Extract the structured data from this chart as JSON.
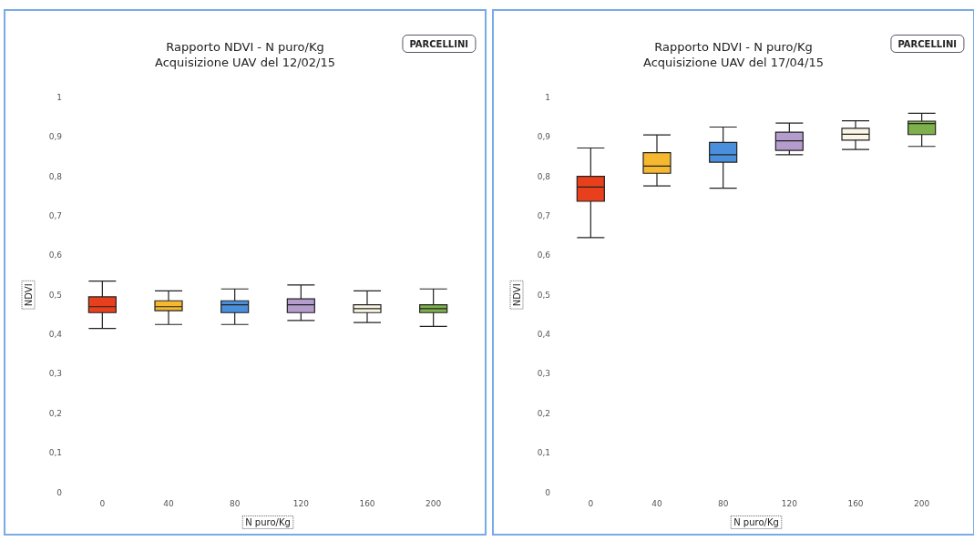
{
  "chart_data": [
    {
      "type": "box",
      "title": "Rapporto NDVI - N puro/Kg",
      "subtitle": "Acquisizione UAV del 12/02/15",
      "xlabel": "N puro/Kg",
      "ylabel": "NDVI",
      "annotations": [
        "PARCELLINI"
      ],
      "categories": [
        "0",
        "40",
        "80",
        "120",
        "160",
        "200"
      ],
      "colors": [
        "#e8401c",
        "#f5b82e",
        "#4a8fdc",
        "#b49ccc",
        "#fbf5e6",
        "#7eb04c"
      ],
      "boxes": [
        {
          "low": 0.415,
          "q1": 0.455,
          "median": 0.47,
          "q3": 0.495,
          "high": 0.535
        },
        {
          "low": 0.425,
          "q1": 0.46,
          "median": 0.47,
          "q3": 0.485,
          "high": 0.51
        },
        {
          "low": 0.425,
          "q1": 0.455,
          "median": 0.475,
          "q3": 0.485,
          "high": 0.515
        },
        {
          "low": 0.435,
          "q1": 0.455,
          "median": 0.475,
          "q3": 0.49,
          "high": 0.525
        },
        {
          "low": 0.43,
          "q1": 0.455,
          "median": 0.465,
          "q3": 0.475,
          "high": 0.51
        },
        {
          "low": 0.42,
          "q1": 0.455,
          "median": 0.465,
          "q3": 0.475,
          "high": 0.515
        }
      ],
      "ylim": [
        0,
        1
      ],
      "yticks": [
        {
          "value": 0,
          "label": "0"
        },
        {
          "value": 0.1,
          "label": "0,1"
        },
        {
          "value": 0.2,
          "label": "0,2"
        },
        {
          "value": 0.3,
          "label": "0,3"
        },
        {
          "value": 0.4,
          "label": "0,4"
        },
        {
          "value": 0.5,
          "label": "0,5"
        },
        {
          "value": 0.6,
          "label": "0,6"
        },
        {
          "value": 0.7,
          "label": "0,7"
        },
        {
          "value": 0.8,
          "label": "0,8"
        },
        {
          "value": 0.9,
          "label": "0,9"
        },
        {
          "value": 1,
          "label": "1"
        }
      ],
      "grid": false
    },
    {
      "type": "box",
      "title": "Rapporto NDVI - N puro/Kg",
      "subtitle": "Acquisizione UAV del 17/04/15",
      "xlabel": "N puro/Kg",
      "ylabel": "NDVI",
      "annotations": [
        "PARCELLINI"
      ],
      "categories": [
        "0",
        "40",
        "80",
        "120",
        "160",
        "200"
      ],
      "colors": [
        "#e8401c",
        "#f5b82e",
        "#4a8fdc",
        "#b49ccc",
        "#fbf5e6",
        "#7eb04c"
      ],
      "boxes": [
        {
          "low": 0.645,
          "q1": 0.737,
          "median": 0.773,
          "q3": 0.8,
          "high": 0.872
        },
        {
          "low": 0.776,
          "q1": 0.808,
          "median": 0.826,
          "q3": 0.86,
          "high": 0.905
        },
        {
          "low": 0.77,
          "q1": 0.836,
          "median": 0.855,
          "q3": 0.886,
          "high": 0.925
        },
        {
          "low": 0.855,
          "q1": 0.866,
          "median": 0.89,
          "q3": 0.912,
          "high": 0.935
        },
        {
          "low": 0.868,
          "q1": 0.892,
          "median": 0.907,
          "q3": 0.922,
          "high": 0.941
        },
        {
          "low": 0.876,
          "q1": 0.906,
          "median": 0.934,
          "q3": 0.94,
          "high": 0.96
        }
      ],
      "ylim": [
        0,
        1
      ],
      "yticks": [
        {
          "value": 0,
          "label": "0"
        },
        {
          "value": 0.1,
          "label": "0,1"
        },
        {
          "value": 0.2,
          "label": "0,2"
        },
        {
          "value": 0.3,
          "label": "0,3"
        },
        {
          "value": 0.4,
          "label": "0,4"
        },
        {
          "value": 0.5,
          "label": "0,5"
        },
        {
          "value": 0.6,
          "label": "0,6"
        },
        {
          "value": 0.7,
          "label": "0,7"
        },
        {
          "value": 0.8,
          "label": "0,8"
        },
        {
          "value": 0.9,
          "label": "0,9"
        },
        {
          "value": 1,
          "label": "1"
        }
      ],
      "grid": false
    }
  ]
}
